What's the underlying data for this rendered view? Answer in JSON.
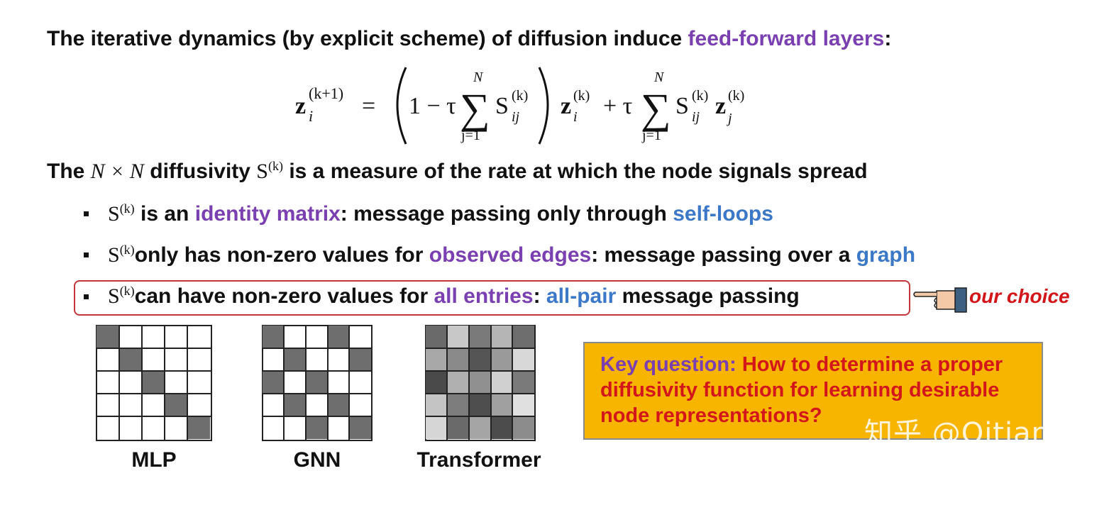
{
  "heading": {
    "prefix": "The iterative dynamics (by explicit scheme) of diffusion induce ",
    "highlight": "feed-forward layers",
    "suffix": ":"
  },
  "equation": {
    "lhs": "z",
    "lhs_sub": "i",
    "lhs_sup": "(k+1)",
    "equals": "=",
    "one_minus_tau": "1 − τ",
    "sum_top": "N",
    "sum_bottom": "j=1",
    "S": "S",
    "S_sub": "ij",
    "S_sup": "(k)",
    "z_i": "z",
    "z_i_sub": "i",
    "z_i_sup": "(k)",
    "plus_tau": "+ τ",
    "z_j": "z",
    "z_j_sub": "j",
    "z_j_sup": "(k)"
  },
  "diffusivity_line": {
    "prefix": "The ",
    "math_nn": "N × N",
    "mid": " diffusivity ",
    "math_s": "S",
    "math_s_sup": "(k)",
    "suffix": " is a measure of the rate at which the node signals spread"
  },
  "bullets": [
    {
      "math": "S",
      "sup": "(k)",
      "t1": " is an ",
      "h1": "identity matrix",
      "t2": ": message passing only through ",
      "h2": "self-loops",
      "t3": ""
    },
    {
      "math": "S",
      "sup": "(k)",
      "t1": "only has non-zero values for ",
      "h1": "observed edges",
      "t2": ": message passing over a ",
      "h2": "graph",
      "t3": ""
    },
    {
      "math": "S",
      "sup": "(k)",
      "t1": "can have non-zero values for ",
      "h1": "all entries",
      "t2": ": ",
      "h2": "all-pair",
      "t3": " message passing"
    }
  ],
  "our_choice": "our choice",
  "matrices": [
    {
      "label": "MLP"
    },
    {
      "label": "GNN"
    },
    {
      "label": "Transformer"
    }
  ],
  "key_question": {
    "lead": "Key question: ",
    "text": "How to determine a proper diffusivity function for learning desirable node representations?"
  },
  "watermark": "知乎 @Qitian",
  "colors": {
    "purple": "#7a3fb0",
    "blue": "#3b78c8",
    "red": "#d2161a",
    "box_border": "#c4363c",
    "key_bg": "#f7b500"
  }
}
